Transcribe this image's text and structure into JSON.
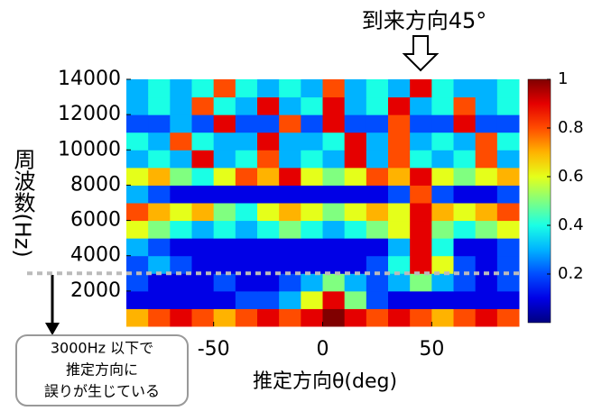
{
  "chart_data": {
    "type": "heatmap",
    "x_label": "推定方向θ(deg)",
    "y_label": "周波数(Hz)",
    "x": [
      -85,
      -75,
      -65,
      -55,
      -45,
      -35,
      -25,
      -15,
      -5,
      5,
      15,
      25,
      35,
      45,
      55,
      65,
      75,
      85
    ],
    "y": [
      500,
      1500,
      2500,
      3500,
      4500,
      5500,
      6500,
      7500,
      8500,
      9500,
      10500,
      11500,
      12500,
      13500
    ],
    "z": [
      [
        0.7,
        0.8,
        0.9,
        0.8,
        0.7,
        0.8,
        0.9,
        0.8,
        0.9,
        1.0,
        0.9,
        0.8,
        0.9,
        0.8,
        0.7,
        0.8,
        0.9,
        0.8
      ],
      [
        0.1,
        0.1,
        0.1,
        0.1,
        0.1,
        0.2,
        0.2,
        0.3,
        0.6,
        0.9,
        0.5,
        0.2,
        0.1,
        0.1,
        0.1,
        0.1,
        0.1,
        0.1
      ],
      [
        0.2,
        0.1,
        0.1,
        0.1,
        0.2,
        0.1,
        0.1,
        0.2,
        0.3,
        0.5,
        0.3,
        0.2,
        0.3,
        0.5,
        0.3,
        0.2,
        0.1,
        0.2
      ],
      [
        0.2,
        0.3,
        0.2,
        0.1,
        0.1,
        0.1,
        0.1,
        0.1,
        0.1,
        0.1,
        0.1,
        0.2,
        0.4,
        0.9,
        0.6,
        0.2,
        0.1,
        0.2
      ],
      [
        0.3,
        0.2,
        0.1,
        0.1,
        0.1,
        0.1,
        0.1,
        0.1,
        0.1,
        0.1,
        0.1,
        0.1,
        0.3,
        0.9,
        0.4,
        0.1,
        0.1,
        0.2
      ],
      [
        0.6,
        0.5,
        0.4,
        0.3,
        0.4,
        0.3,
        0.4,
        0.5,
        0.4,
        0.3,
        0.4,
        0.5,
        0.6,
        0.9,
        0.5,
        0.4,
        0.5,
        0.6
      ],
      [
        0.8,
        0.7,
        0.6,
        0.7,
        0.5,
        0.4,
        0.6,
        0.7,
        0.6,
        0.5,
        0.6,
        0.7,
        0.6,
        0.9,
        0.7,
        0.6,
        0.7,
        0.8
      ],
      [
        0.3,
        0.2,
        0.1,
        0.1,
        0.1,
        0.1,
        0.1,
        0.1,
        0.1,
        0.1,
        0.1,
        0.1,
        0.2,
        0.8,
        0.2,
        0.1,
        0.1,
        0.2
      ],
      [
        0.6,
        0.7,
        0.5,
        0.4,
        0.6,
        0.8,
        0.7,
        0.9,
        0.6,
        0.5,
        0.6,
        0.8,
        0.7,
        0.9,
        0.6,
        0.5,
        0.6,
        0.7
      ],
      [
        0.3,
        0.4,
        0.3,
        0.9,
        0.3,
        0.4,
        0.8,
        0.3,
        0.4,
        0.3,
        0.9,
        0.3,
        0.8,
        0.4,
        0.3,
        0.4,
        0.8,
        0.3
      ],
      [
        0.4,
        0.3,
        0.8,
        0.4,
        0.3,
        0.3,
        0.9,
        0.3,
        0.3,
        0.4,
        0.9,
        0.3,
        0.8,
        0.3,
        0.4,
        0.3,
        0.8,
        0.4
      ],
      [
        0.2,
        0.2,
        0.3,
        0.2,
        0.9,
        0.2,
        0.2,
        0.8,
        0.2,
        0.9,
        0.2,
        0.2,
        0.8,
        0.2,
        0.2,
        0.9,
        0.2,
        0.2
      ],
      [
        0.3,
        0.4,
        0.3,
        0.8,
        0.4,
        0.3,
        0.9,
        0.3,
        0.4,
        0.9,
        0.3,
        0.4,
        0.9,
        0.3,
        0.4,
        0.8,
        0.3,
        0.4
      ],
      [
        0.3,
        0.4,
        0.3,
        0.4,
        0.8,
        0.4,
        0.3,
        0.4,
        0.3,
        0.8,
        0.3,
        0.4,
        0.3,
        0.9,
        0.4,
        0.3,
        0.3,
        0.4
      ]
    ],
    "xlim": [
      -90,
      90
    ],
    "xticks": [
      -50,
      0,
      50
    ],
    "ylim": [
      0,
      14000
    ],
    "yticks": [
      2000,
      4000,
      6000,
      8000,
      10000,
      12000,
      14000
    ],
    "clim": [
      0,
      1
    ],
    "cticks": [
      0.2,
      0.4,
      0.6,
      0.8,
      1
    ],
    "colormap": "jet",
    "annotations": {
      "arrival": "到来方向45°",
      "threshold": 3000,
      "note": [
        "3000Hz 以下で",
        "推定方向に",
        "誤りが生じている"
      ]
    }
  }
}
